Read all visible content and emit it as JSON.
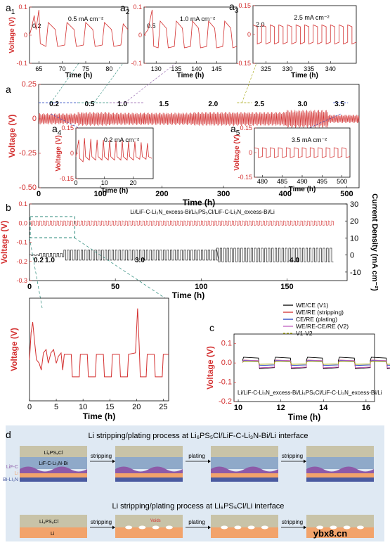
{
  "chart_data": [
    {
      "id": "a",
      "type": "line",
      "panel_label": "a",
      "xlabel": "Time (h)",
      "ylabel": "Voltage (V)",
      "xlim": [
        0,
        520
      ],
      "ylim": [
        -0.5,
        0.25
      ],
      "xticks": [
        0,
        100,
        200,
        300,
        400,
        500
      ],
      "yticks": [
        0.25,
        0,
        -0.25,
        -0.5
      ],
      "ytick_labels": [
        "0.25",
        "0",
        "-0.25",
        "-0.50"
      ],
      "color": "#d32f2f",
      "segments": [
        {
          "label": "0.2",
          "t_start": 0,
          "t_end": 64,
          "amplitude": 0.04
        },
        {
          "label": "0.5",
          "t_start": 64,
          "t_end": 115,
          "amplitude": 0.05
        },
        {
          "label": "1.0",
          "t_start": 115,
          "t_end": 170,
          "amplitude": 0.045
        },
        {
          "label": "1.5",
          "t_start": 170,
          "t_end": 250,
          "amplitude": 0.045
        },
        {
          "label": "2.0",
          "t_start": 250,
          "t_end": 330,
          "amplitude": 0.05
        },
        {
          "label": "2.5",
          "t_start": 330,
          "t_end": 400,
          "amplitude": 0.05
        },
        {
          "label": "3.0",
          "t_start": 400,
          "t_end": 470,
          "amplitude": 0.065
        },
        {
          "label": "3.5",
          "t_start": 470,
          "t_end": 520,
          "amplitude": 0.03
        }
      ],
      "segment_labels": [
        "0.2",
        "0.5",
        "1.0",
        "1.5",
        "2.0",
        "2.5",
        "3.0",
        "3.5"
      ]
    },
    {
      "id": "a1",
      "type": "line",
      "panel_label": "a",
      "panel_sub": "1",
      "title": "0.5 mA cm⁻²",
      "annotation": "0.2",
      "xlabel": "Time (h)",
      "ylabel": "Voltage (V)",
      "xlim": [
        63,
        84
      ],
      "ylim": [
        -0.1,
        0.1
      ],
      "xticks": [
        65,
        70,
        75,
        80
      ],
      "yticks": [
        0.1,
        0,
        -0.1
      ],
      "ytick_labels": [
        "0.1",
        "0",
        "-0.1"
      ],
      "color": "#d32f2f",
      "trace": [
        [
          63,
          0
        ],
        [
          63.5,
          0.03
        ],
        [
          64,
          0.07
        ],
        [
          64.4,
          0.02
        ],
        [
          65,
          0.09
        ],
        [
          65.3,
          -0.03
        ],
        [
          66.5,
          -0.04
        ],
        [
          67,
          0.045
        ],
        [
          68.5,
          0.02
        ],
        [
          69,
          -0.04
        ],
        [
          70.5,
          -0.035
        ],
        [
          71,
          0.045
        ],
        [
          72.5,
          0.02
        ],
        [
          73,
          -0.04
        ],
        [
          74.5,
          -0.035
        ],
        [
          75,
          0.045
        ],
        [
          76.5,
          0.02
        ],
        [
          77,
          -0.04
        ],
        [
          78.5,
          -0.035
        ],
        [
          79,
          0.045
        ],
        [
          80.5,
          0.02
        ],
        [
          81,
          -0.04
        ],
        [
          82.5,
          -0.035
        ],
        [
          83,
          0.04
        ],
        [
          84,
          0.02
        ]
      ]
    },
    {
      "id": "a2",
      "type": "line",
      "panel_label": "a",
      "panel_sub": "2",
      "title": "1.0 mA cm⁻²",
      "annotation": "0.5",
      "xlabel": "Time (h)",
      "ylabel": "",
      "xlim": [
        127,
        150
      ],
      "ylim": [
        -0.1,
        0.1
      ],
      "xticks": [
        130,
        135,
        140,
        145
      ],
      "yticks": [
        0.1,
        0,
        -0.1
      ],
      "ytick_labels": [
        "0.1",
        "0",
        "-0.1"
      ],
      "color": "#d32f2f",
      "trace": [
        [
          127,
          0
        ],
        [
          128,
          0.02
        ],
        [
          129,
          0.09
        ],
        [
          129.4,
          -0.04
        ],
        [
          130.5,
          -0.045
        ],
        [
          131,
          0.05
        ],
        [
          132.5,
          0.025
        ],
        [
          133,
          -0.045
        ],
        [
          134.5,
          -0.04
        ],
        [
          135,
          0.05
        ],
        [
          136.5,
          0.025
        ],
        [
          137,
          -0.045
        ],
        [
          138.5,
          -0.04
        ],
        [
          139,
          0.05
        ],
        [
          140.5,
          0.025
        ],
        [
          141,
          -0.045
        ],
        [
          142.5,
          -0.04
        ],
        [
          143,
          0.05
        ],
        [
          144.5,
          0.025
        ],
        [
          145,
          -0.045
        ],
        [
          146.5,
          -0.04
        ],
        [
          147,
          0.05
        ],
        [
          148.5,
          0.025
        ],
        [
          149,
          -0.045
        ],
        [
          150,
          -0.04
        ]
      ]
    },
    {
      "id": "a3",
      "type": "line",
      "panel_label": "a",
      "panel_sub": "3",
      "title": "2.5 mA cm⁻²",
      "annotation": "2.0",
      "xlabel": "Time (h)",
      "ylabel": "",
      "xlim": [
        322,
        346
      ],
      "ylim": [
        -0.15,
        0.15
      ],
      "xticks": [
        325,
        330,
        335,
        340
      ],
      "yticks": [
        0.15,
        0,
        -0.15
      ],
      "ytick_labels": [
        "0.15",
        "0",
        "-0.15"
      ],
      "color": "#d32f2f",
      "wave": {
        "t_start": 322,
        "t_end": 346,
        "period": 2,
        "amplitude": 0.05
      }
    },
    {
      "id": "a4",
      "type": "line",
      "panel_label": "a",
      "panel_sub": "4",
      "title": "0.2 mA cm⁻²",
      "xlabel": "Time (h)",
      "ylabel": "Voltage (V)",
      "xlim": [
        0,
        27
      ],
      "ylim": [
        -0.15,
        0.15
      ],
      "xticks": [
        0,
        10,
        20
      ],
      "yticks": [
        0.15,
        0,
        -0.15
      ],
      "ytick_labels": [
        "0.15",
        "0",
        "-0.15"
      ],
      "color": "#d32f2f",
      "trace": [
        [
          0,
          -0.02
        ],
        [
          1,
          0.08
        ],
        [
          1.3,
          -0.03
        ],
        [
          2.5,
          -0.05
        ],
        [
          3,
          0.09
        ],
        [
          3.4,
          -0.02
        ],
        [
          4.7,
          -0.04
        ],
        [
          5.2,
          0.085
        ],
        [
          5.6,
          -0.02
        ],
        [
          6.9,
          -0.04
        ],
        [
          7.4,
          0.08
        ],
        [
          7.8,
          -0.02
        ],
        [
          9.1,
          -0.04
        ],
        [
          9.6,
          0.08
        ],
        [
          10,
          -0.02
        ],
        [
          11.3,
          -0.04
        ],
        [
          11.8,
          0.08
        ],
        [
          12.2,
          -0.02
        ],
        [
          13.5,
          -0.04
        ],
        [
          14,
          0.075
        ],
        [
          14.4,
          -0.02
        ],
        [
          15.7,
          -0.04
        ],
        [
          16.2,
          0.075
        ],
        [
          16.6,
          -0.02
        ],
        [
          17.9,
          -0.04
        ],
        [
          18.4,
          0.07
        ],
        [
          18.8,
          -0.02
        ],
        [
          20.1,
          -0.04
        ],
        [
          20.6,
          0.07
        ],
        [
          21,
          -0.02
        ],
        [
          22.3,
          -0.035
        ],
        [
          22.8,
          0.065
        ],
        [
          23.2,
          -0.02
        ],
        [
          24.5,
          -0.035
        ],
        [
          25,
          0.06
        ],
        [
          25.4,
          -0.02
        ],
        [
          26.5,
          -0.03
        ]
      ]
    },
    {
      "id": "a5",
      "type": "line",
      "panel_label": "a",
      "panel_sub": "5",
      "title": "3.5 mA cm⁻²",
      "xlabel": "Time (h)",
      "ylabel": "Voltage (V)",
      "xlim": [
        478,
        502
      ],
      "ylim": [
        -0.15,
        0.15
      ],
      "xticks": [
        480,
        485,
        490,
        495,
        500
      ],
      "yticks": [
        0.15,
        0,
        -0.15
      ],
      "ytick_labels": [
        "0.15",
        "0",
        "-0.15"
      ],
      "color": "#d32f2f",
      "wave": {
        "t_start": 478,
        "t_end": 502,
        "period": 2,
        "amplitude": 0.03
      }
    },
    {
      "id": "b",
      "type": "line",
      "panel_label": "b",
      "title": "Li/LiF-C-Li₃N_excess-Bi/Li₆PS₅Cl/LiF-C-Li₃N_excess-Bi/Li",
      "xlabel": "Time (h)",
      "ylabel": "Voltage (V)",
      "y2label": "Current Density (mA cm⁻²)",
      "xlim": [
        0,
        185
      ],
      "ylim": [
        -0.3,
        0.1
      ],
      "y2lim": [
        -15,
        30
      ],
      "xticks": [
        0,
        50,
        100,
        150
      ],
      "yticks": [
        0.1,
        0,
        -0.1,
        -0.2,
        -0.3
      ],
      "ytick_labels": [
        "0.1",
        "0.0",
        "-0.1",
        "-0.2",
        "-0.3"
      ],
      "y2ticks": [
        30,
        20,
        10,
        0,
        -10
      ],
      "current_labels": [
        "0.2",
        "1.0",
        "3.0",
        "4.0"
      ],
      "series": [
        {
          "name": "Voltage",
          "color": "#d32f2f",
          "amplitude": 0.012,
          "period": 2
        },
        {
          "name": "Current Density",
          "color": "#000000",
          "steps": [
            {
              "t_start": 0,
              "t_end": 6,
              "value": 0.2
            },
            {
              "t_start": 6,
              "t_end": 20,
              "value": 1.0
            },
            {
              "t_start": 20,
              "t_end": 109,
              "value": 3.0
            },
            {
              "t_start": 109,
              "t_end": 177,
              "value": 4.0
            }
          ]
        }
      ]
    },
    {
      "id": "b-zoom",
      "type": "line",
      "panel_label": "",
      "xlabel": "Time (h)",
      "ylabel": "Voltage (V)",
      "xlim": [
        0,
        26
      ],
      "ylim": [
        -0.05,
        0.1
      ],
      "xticks": [
        0,
        5,
        10,
        15,
        20,
        25
      ],
      "color": "#d32f2f",
      "trace": [
        [
          0,
          0.01
        ],
        [
          0.3,
          0.05
        ],
        [
          0.6,
          0.065
        ],
        [
          0.9,
          0.04
        ],
        [
          1.3,
          0.01
        ],
        [
          1.8,
          0.005
        ],
        [
          2.2,
          -0.005
        ],
        [
          2.6,
          0.02
        ],
        [
          3.1,
          0.025
        ],
        [
          3.5,
          0.005
        ],
        [
          4,
          0.02
        ],
        [
          4.5,
          0.025
        ],
        [
          5,
          0.005
        ],
        [
          5.4,
          0.015
        ],
        [
          5.9,
          0.02
        ],
        [
          6.2,
          -0.005
        ],
        [
          6.5,
          0.018
        ],
        [
          7.8,
          0.018
        ],
        [
          8,
          -0.015
        ],
        [
          9.3,
          -0.015
        ],
        [
          9.5,
          0.018
        ],
        [
          10.8,
          0.018
        ],
        [
          11,
          -0.015
        ],
        [
          12.3,
          -0.015
        ],
        [
          12.5,
          0.018
        ],
        [
          13.8,
          0.018
        ],
        [
          14,
          -0.015
        ],
        [
          15.3,
          -0.015
        ],
        [
          15.5,
          0.018
        ],
        [
          16.8,
          0.018
        ],
        [
          17,
          -0.015
        ],
        [
          18.3,
          -0.015
        ],
        [
          18.5,
          0.018
        ],
        [
          19.8,
          0.02
        ],
        [
          20.2,
          0.085
        ],
        [
          20.5,
          0.03
        ],
        [
          20.7,
          -0.015
        ],
        [
          21.8,
          -0.015
        ],
        [
          22,
          0.018
        ],
        [
          23.3,
          0.018
        ],
        [
          23.5,
          -0.015
        ],
        [
          24.8,
          -0.015
        ],
        [
          25,
          0.018
        ],
        [
          26,
          0.018
        ]
      ]
    },
    {
      "id": "c",
      "type": "line",
      "panel_label": "c",
      "annotation": "Li/LiF-C-Li₃N_excess-Bi/Li₆PS₅Cl/LiF-C-Li₃N_excess-Bi/Li",
      "xlabel": "Time (h)",
      "ylabel": "Voltage (V)",
      "xlim": [
        9.8,
        16.4
      ],
      "ylim": [
        -0.2,
        0.15
      ],
      "xticks": [
        10,
        12,
        14,
        16
      ],
      "yticks": [
        0.1,
        0,
        -0.1,
        -0.2
      ],
      "ytick_labels": [
        "0.1",
        "0.0",
        "-0.1",
        "-0.2"
      ],
      "period": 1.5,
      "t_start": 10.2,
      "series": [
        {
          "name": "WE/CE (V1)",
          "color": "#000000",
          "amplitude": 0.03
        },
        {
          "name": "WE/RE (stripping)",
          "color": "#d32f2f",
          "amplitude": 0.02
        },
        {
          "name": "CE/RE (plating)",
          "color": "#1f3fbf",
          "amplitude": 0.013
        },
        {
          "name": "WE/RE-CE/RE (V2)",
          "color": "#c060c0",
          "amplitude": 0.02
        },
        {
          "name": "V1-V2",
          "color": "#a0a000",
          "amplitude": 0.007
        }
      ]
    }
  ],
  "panel_d": {
    "panel_label": "d",
    "title_top": "Li stripping/plating process at Li₆PS₅Cl/LiF-C-Li₃N-Bi/Li interface",
    "title_bottom": "Li stripping/plating process at Li₆PS₅Cl/Li interface",
    "top_layers": {
      "sse": "Li₆PS₅Cl",
      "interlayer": "LiF-C-Li₃N-Bi"
    },
    "side_labels": [
      "LiF-C",
      "Li",
      "Bi-Li₃N"
    ],
    "bottom_layers": {
      "sse": "Li₆PS₅Cl",
      "metal": "Li"
    },
    "step_labels": [
      "stripping",
      "plating",
      "stripping"
    ],
    "voids_label": "Voids",
    "colors": {
      "sse": "#c8c3a8",
      "interlayer": "#8fa9c9",
      "lif": "#8d5aa8",
      "li": "#f2a36b",
      "bi": "#4a5aa0",
      "bg": "#dfe9f3"
    }
  },
  "watermark": "ybx8.cn"
}
